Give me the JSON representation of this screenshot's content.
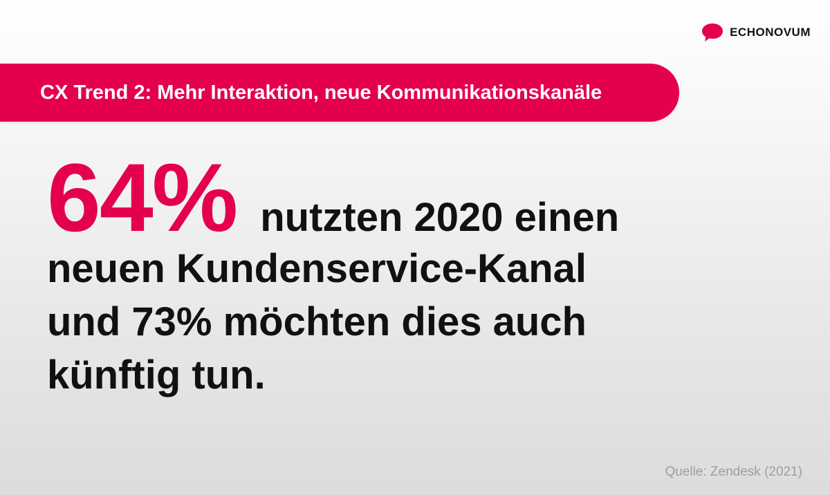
{
  "brand": {
    "name": "ECHONOVUM",
    "logo_icon": "speech-bubble-icon",
    "accent_color": "#e4004f"
  },
  "banner": {
    "text": "CX Trend 2: Mehr Interaktion, neue Kommunikationskanäle"
  },
  "headline": {
    "highlight": "64%",
    "line1_rest": "nutzten 2020 einen",
    "line2": "neuen Kundenservice-Kanal",
    "line3": "und 73% möchten dies auch",
    "line4": "künftig tun."
  },
  "source": {
    "text": "Quelle: Zendesk (2021)"
  }
}
